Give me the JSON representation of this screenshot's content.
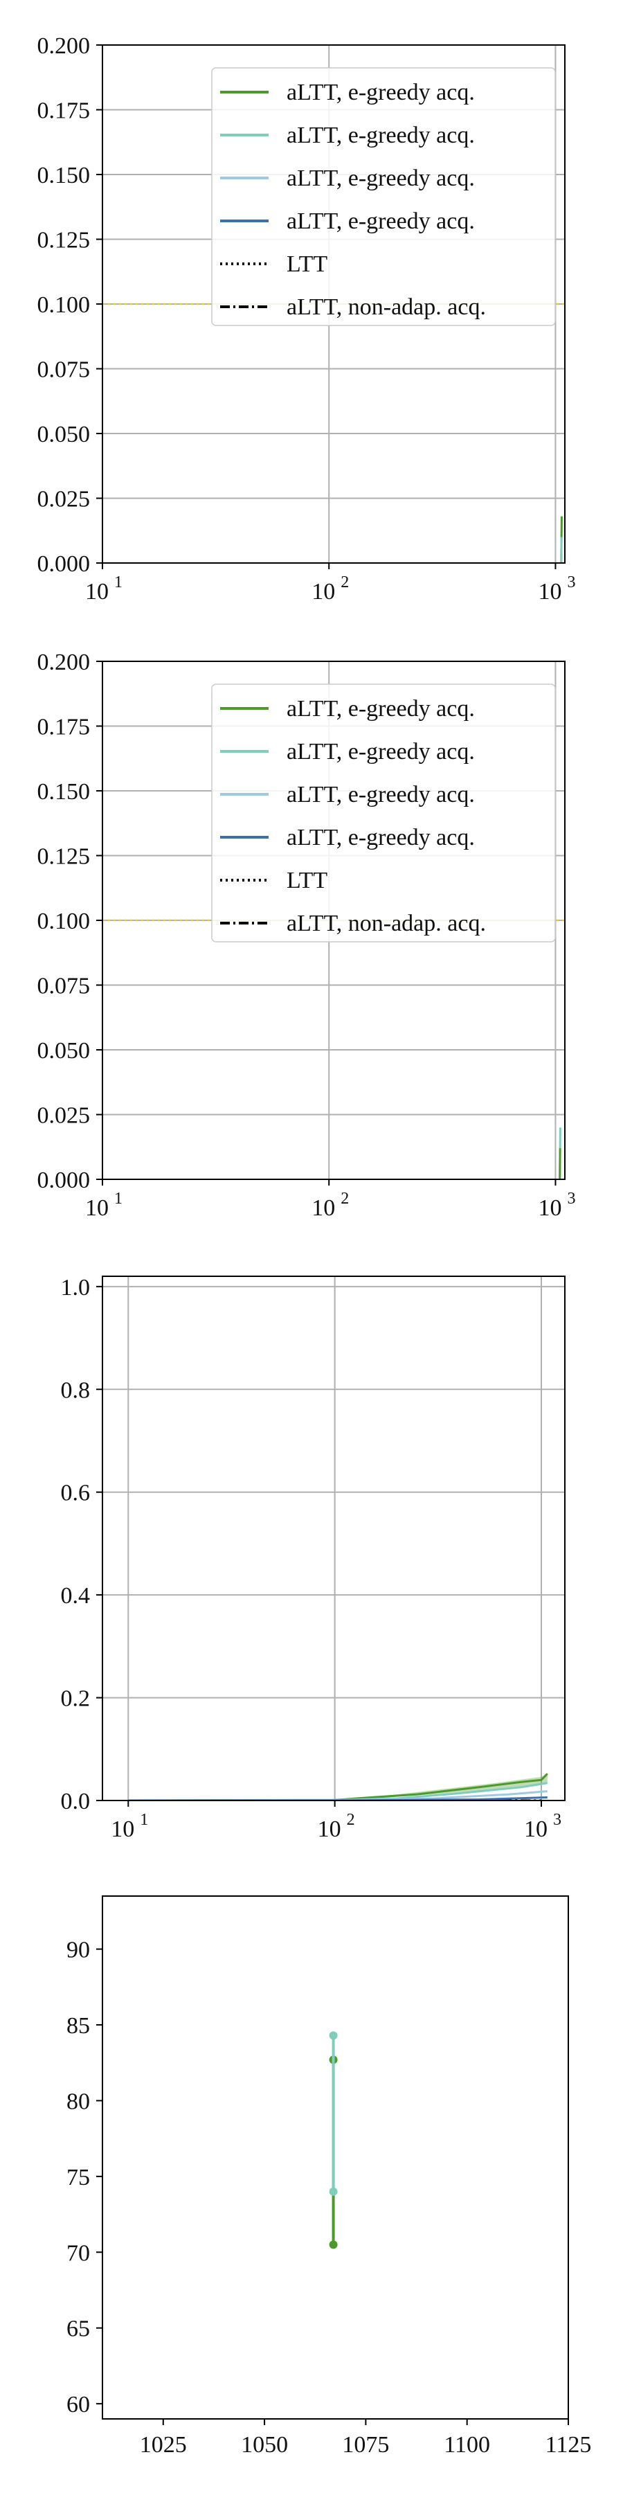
{
  "colors": {
    "series_green": "#4c9a2a",
    "series_teal": "#7fcdbb",
    "series_lightblue": "#9ecae1",
    "series_blue": "#3a6fb0",
    "ltt": "#000000",
    "non_adaptive": "#000000",
    "threshold_line": "#e4c84a"
  },
  "legend_entries": [
    {
      "label": "aLTT, e-greedy acq.",
      "style": "solid",
      "color": "#4c9a2a"
    },
    {
      "label": "aLTT, e-greedy acq.",
      "style": "solid",
      "color": "#7fcdbb"
    },
    {
      "label": "aLTT, e-greedy acq.",
      "style": "solid",
      "color": "#9ecae1"
    },
    {
      "label": "aLTT, e-greedy acq.",
      "style": "solid",
      "color": "#3a6fb0"
    },
    {
      "label": "LTT",
      "style": "dotted",
      "color": "#000000"
    },
    {
      "label": "aLTT, non-adap. acq.",
      "style": "dashdot",
      "color": "#000000"
    }
  ],
  "chart_data": [
    {
      "type": "line",
      "xscale": "log",
      "xlim": [
        10,
        1100
      ],
      "ylim": [
        0,
        0.2
      ],
      "x_ticks": [
        10,
        100,
        1000
      ],
      "x_tick_labels": [
        "10",
        "10",
        "10"
      ],
      "x_tick_exponents": [
        "1",
        "2",
        "3"
      ],
      "y_ticks": [
        0,
        0.025,
        0.05,
        0.075,
        0.1,
        0.125,
        0.15,
        0.175,
        0.2
      ],
      "y_tick_labels": [
        "0.000",
        "0.025",
        "0.050",
        "0.075",
        "0.100",
        "0.125",
        "0.150",
        "0.175",
        "0.200"
      ],
      "grid": true,
      "legend": "upper-right",
      "hlines": [
        {
          "y": 0.1,
          "color": "#e4c84a",
          "style": "dotted"
        }
      ],
      "series": [
        {
          "color": "#4c9a2a",
          "style": "solid",
          "points": [
            [
              1060,
              0
            ],
            [
              1065,
              0.018
            ]
          ]
        },
        {
          "color": "#7fcdbb",
          "style": "solid",
          "points": [
            [
              1060,
              0
            ],
            [
              1063,
              0.01
            ]
          ]
        }
      ]
    },
    {
      "type": "line",
      "xscale": "log",
      "xlim": [
        10,
        1100
      ],
      "ylim": [
        0,
        0.2
      ],
      "x_ticks": [
        10,
        100,
        1000
      ],
      "x_tick_labels": [
        "10",
        "10",
        "10"
      ],
      "x_tick_exponents": [
        "1",
        "2",
        "3"
      ],
      "y_ticks": [
        0,
        0.025,
        0.05,
        0.075,
        0.1,
        0.125,
        0.15,
        0.175,
        0.2
      ],
      "y_tick_labels": [
        "0.000",
        "0.025",
        "0.050",
        "0.075",
        "0.100",
        "0.125",
        "0.150",
        "0.175",
        "0.200"
      ],
      "grid": true,
      "legend": "upper-right",
      "hlines": [
        {
          "y": 0.1,
          "color": "#e4c84a",
          "style": "dotted"
        }
      ],
      "series": [
        {
          "color": "#7fcdbb",
          "style": "solid",
          "points": [
            [
              1045,
              0
            ],
            [
              1050,
              0.02
            ]
          ]
        },
        {
          "color": "#4c9a2a",
          "style": "solid",
          "points": [
            [
              1045,
              0
            ],
            [
              1048,
              0.012
            ]
          ]
        }
      ]
    },
    {
      "type": "line",
      "xscale": "log",
      "xlim": [
        7.5,
        1300
      ],
      "ylim": [
        0,
        1.02
      ],
      "x_ticks": [
        10,
        100,
        1000
      ],
      "x_tick_labels": [
        "10",
        "10",
        "10"
      ],
      "x_tick_exponents": [
        "1",
        "2",
        "3"
      ],
      "y_ticks": [
        0,
        0.2,
        0.4,
        0.6,
        0.8,
        1.0
      ],
      "y_tick_labels": [
        "0.0",
        "0.2",
        "0.4",
        "0.6",
        "0.8",
        "1.0"
      ],
      "grid": true,
      "legend": "none",
      "hlines": [],
      "series": [
        {
          "color": "#000000",
          "style": "dashdot",
          "points": [
            [
              10,
              0
            ],
            [
              100,
              0
            ],
            [
              200,
              0
            ],
            [
              1000,
              0
            ]
          ]
        },
        {
          "color": "#4c9a2a",
          "style": "solid",
          "points": [
            [
              10,
              0
            ],
            [
              100,
              0.001
            ],
            [
              150,
              0.006
            ],
            [
              250,
              0.012
            ],
            [
              500,
              0.026
            ],
            [
              800,
              0.036
            ],
            [
              1000,
              0.04
            ],
            [
              1070,
              0.052
            ]
          ]
        },
        {
          "color": "#7fcdbb",
          "style": "solid",
          "points": [
            [
              10,
              0
            ],
            [
              100,
              0.001
            ],
            [
              200,
              0.004
            ],
            [
              400,
              0.014
            ],
            [
              800,
              0.026
            ],
            [
              1070,
              0.034
            ]
          ]
        },
        {
          "color": "#9ecae1",
          "style": "solid",
          "points": [
            [
              10,
              0
            ],
            [
              100,
              0
            ],
            [
              300,
              0.004
            ],
            [
              700,
              0.012
            ],
            [
              1070,
              0.018
            ]
          ]
        },
        {
          "color": "#3a6fb0",
          "style": "solid",
          "points": [
            [
              10,
              0
            ],
            [
              100,
              0
            ],
            [
              500,
              0.002
            ],
            [
              1070,
              0.006
            ]
          ]
        }
      ],
      "bands": [
        {
          "color": "#4c9a2a",
          "upper": [
            [
              150,
              0.006
            ],
            [
              300,
              0.02
            ],
            [
              600,
              0.034
            ],
            [
              1000,
              0.046
            ],
            [
              1070,
              0.054
            ]
          ],
          "lower": [
            [
              150,
              0.004
            ],
            [
              300,
              0.012
            ],
            [
              600,
              0.022
            ],
            [
              1000,
              0.032
            ],
            [
              1070,
              0.036
            ]
          ]
        }
      ]
    },
    {
      "type": "line",
      "xscale": "linear",
      "xlim": [
        1010,
        1125
      ],
      "ylim": [
        59,
        93.5
      ],
      "x_ticks": [
        1025,
        1050,
        1075,
        1100,
        1125
      ],
      "x_tick_labels": [
        "1025",
        "1050",
        "1075",
        "1100",
        "1125"
      ],
      "y_ticks": [
        60,
        65,
        70,
        75,
        80,
        85,
        90
      ],
      "y_tick_labels": [
        "60",
        "65",
        "70",
        "75",
        "80",
        "85",
        "90"
      ],
      "grid": false,
      "legend": "none",
      "hlines": [],
      "series": [
        {
          "color": "#4c9a2a",
          "style": "solid",
          "markers": true,
          "points": [
            [
              1067,
              70.5
            ],
            [
              1067,
              82.7
            ]
          ]
        },
        {
          "color": "#7fcdbb",
          "style": "solid",
          "markers": true,
          "points": [
            [
              1067,
              74.0
            ],
            [
              1067,
              84.3
            ]
          ]
        }
      ]
    }
  ]
}
